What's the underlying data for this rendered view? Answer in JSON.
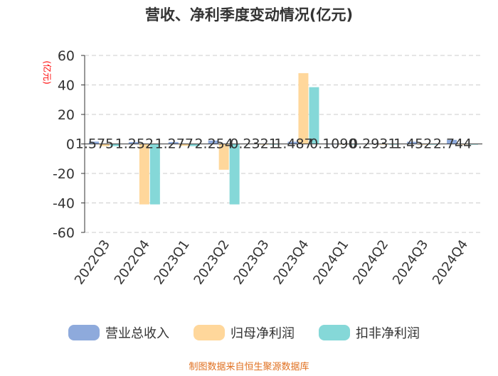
{
  "chart_data": {
    "type": "bar",
    "title": "营收、净利季度变动情况(亿元)",
    "ylabel": "(亿元)",
    "ylim": [
      -60,
      60
    ],
    "yticks": [
      60,
      40,
      20,
      0,
      -20,
      -40,
      -60
    ],
    "grid": true,
    "legend_position": "bottom",
    "categories": [
      "2022Q3",
      "2022Q4",
      "2023Q1",
      "2023Q2",
      "2023Q3",
      "2023Q4",
      "2024Q1",
      "2024Q2",
      "2024Q3",
      "2024Q4"
    ],
    "series": [
      {
        "name": "营业总收入",
        "color": "#8eaadc",
        "values": [
          1.575,
          1.252,
          1.277,
          2.254,
          0.2321,
          1.487,
          0.109,
          0.2931,
          1.452,
          2.744
        ]
      },
      {
        "name": "归母净利润",
        "color": "#ffd79b",
        "values": [
          -1.5,
          -41,
          -1.3,
          -17.5,
          -0.2,
          48,
          -0.1,
          -0.1,
          -0.3,
          -0.4
        ]
      },
      {
        "name": "扣非净利润",
        "color": "#85d8d8",
        "values": [
          -1.5,
          -41,
          -1.5,
          -41,
          -0.2,
          38.5,
          -0.1,
          -0.1,
          -0.3,
          -0.4
        ]
      }
    ],
    "data_labels": [
      "1.575",
      "1.252",
      "1.277",
      "2.254",
      "0.2321",
      "1.487",
      "0.1090",
      "0.2931",
      "1.452",
      "2.744"
    ]
  },
  "source": "制图数据来自恒生聚源数据库"
}
